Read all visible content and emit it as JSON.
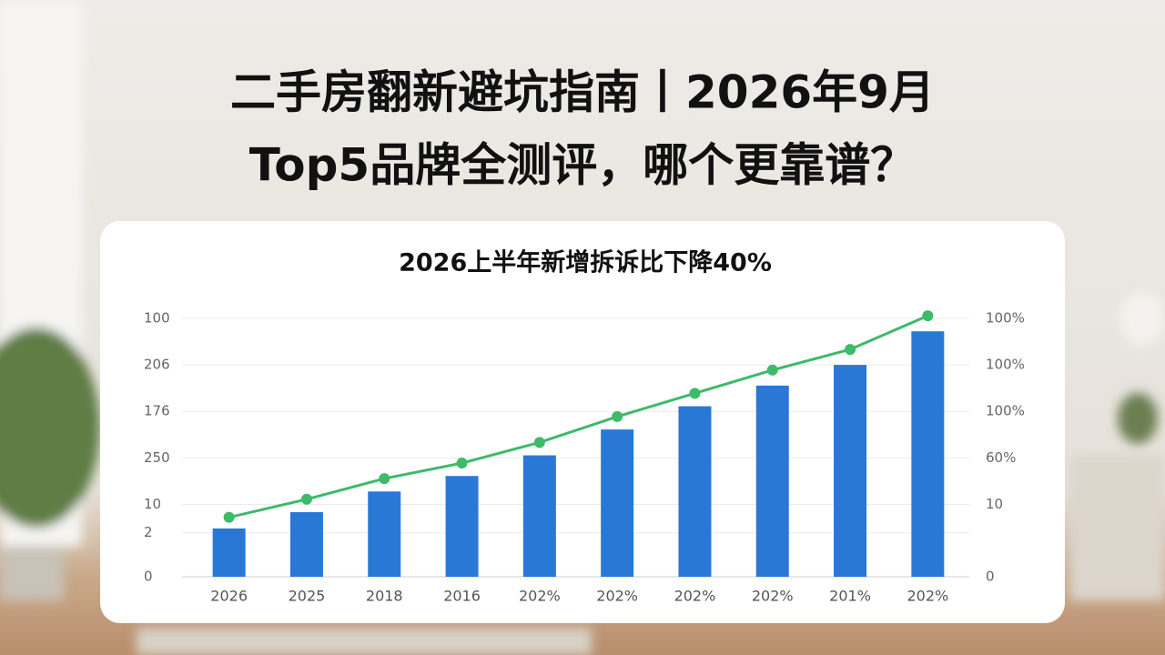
{
  "header": {
    "title_lines": [
      "二手房翻新避坑指南丨2026年9月",
      "Top5品牌全测评，哪个更靠谱？"
    ]
  },
  "chart_data": {
    "type": "bar",
    "title": "2026上半年新增拆诉比下降40%",
    "categories": [
      "2026",
      "2025",
      "2018",
      "2016",
      "202%",
      "202%",
      "202%",
      "202%",
      "201%",
      "202%"
    ],
    "series": [
      {
        "type": "bar",
        "color": "#2a78d6",
        "values": [
          18.7,
          25,
          33,
          39,
          47,
          57,
          66,
          74,
          82,
          95
        ]
      },
      {
        "type": "line",
        "color": "#3dba6a",
        "axis": "y2",
        "values": [
          23,
          30,
          38,
          44,
          52,
          62,
          71,
          80,
          88,
          101
        ]
      }
    ],
    "ylim": [
      0,
      100
    ],
    "yticks": [
      0,
      {
        "value": 17,
        "label": "2"
      },
      {
        "value": 28,
        "label": "10"
      },
      {
        "value": 46,
        "label": "250"
      },
      {
        "value": 64,
        "label": "176"
      },
      {
        "value": 82,
        "label": "206"
      },
      100
    ],
    "y2lim": [
      0,
      100
    ],
    "y2ticks": [
      0,
      {
        "value": 28,
        "label": "10"
      },
      {
        "value": 46,
        "label": "60%"
      },
      {
        "value": 64,
        "label": "100%"
      },
      {
        "value": 82,
        "label": "100%"
      },
      {
        "value": 100,
        "label": "100%"
      }
    ],
    "grid": true
  }
}
